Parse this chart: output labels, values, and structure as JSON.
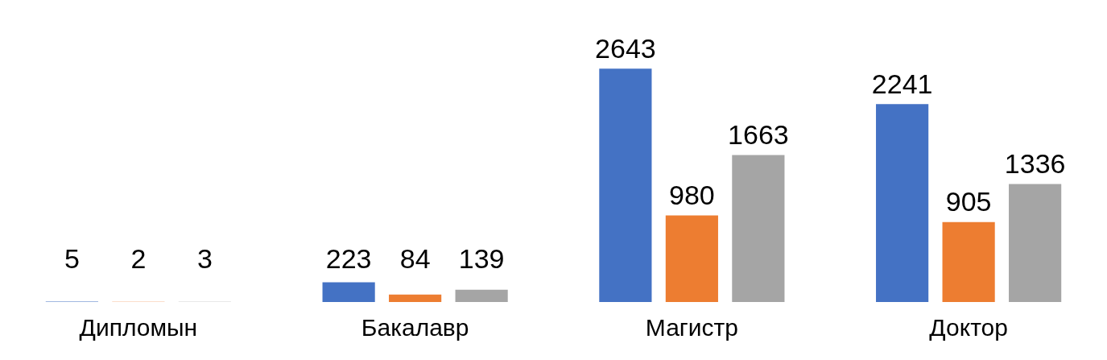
{
  "chart_data": {
    "type": "bar",
    "categories": [
      "Дипломын",
      "Бакалавр",
      "Магистр",
      "Доктор"
    ],
    "series": [
      {
        "color": "#4472c4",
        "values": [
          5,
          223,
          2643,
          2241
        ]
      },
      {
        "color": "#ed7d31",
        "values": [
          2,
          84,
          980,
          905
        ]
      },
      {
        "color": "#a5a5a5",
        "values": [
          3,
          139,
          1663,
          1336
        ]
      }
    ],
    "data_labels": true,
    "tick_labels": "x"
  }
}
